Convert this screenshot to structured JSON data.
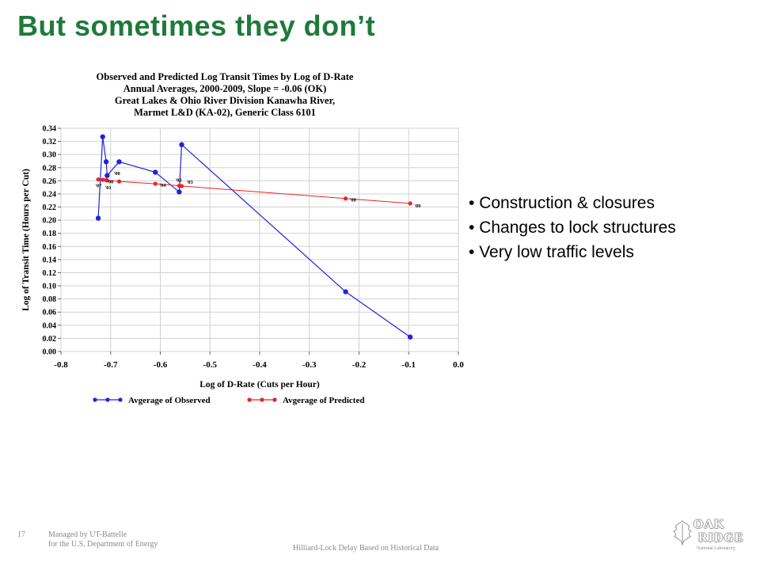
{
  "slide": {
    "title": "But sometimes they don’t",
    "bullets": [
      "Construction & closures",
      "Changes to lock structures",
      "Very low traffic levels"
    ]
  },
  "footer": {
    "page_number": "17",
    "managed_line1": "Managed by UT-Battelle",
    "managed_line2": "for the U.S. Department of Energy",
    "center_text": "Hilliard-Lock Delay Based on Historical Data"
  },
  "logo": {
    "line1": "OAK",
    "line2": "RIDGE",
    "subtitle": "National Laboratory"
  },
  "chart_data": {
    "type": "line",
    "title_lines": [
      "Observed and Predicted Log Transit Times by Log of D-Rate",
      "Annual Averages, 2000-2009, Slope = -0.06 (OK)",
      "Great Lakes & Ohio River Division Kanawha River,",
      "Marmet L&D (KA-02), Generic Class 6101"
    ],
    "xlabel": "Log of D-Rate (Cuts per Hour)",
    "ylabel": "Log of Transit Time (Hours per Cut)",
    "xlim": [
      -0.8,
      0.0
    ],
    "ylim": [
      0.0,
      0.34
    ],
    "xticks": [
      "-0.8",
      "-0.7",
      "-0.6",
      "-0.5",
      "-0.4",
      "-0.3",
      "-0.2",
      "-0.1",
      "0.0"
    ],
    "yticks": [
      "0.00",
      "0.02",
      "0.04",
      "0.06",
      "0.08",
      "0.10",
      "0.12",
      "0.14",
      "0.16",
      "0.18",
      "0.20",
      "0.22",
      "0.24",
      "0.26",
      "0.28",
      "0.30",
      "0.32",
      "0.34"
    ],
    "grid": true,
    "legend_position": "bottom",
    "series": [
      {
        "name": "Avgerage of Observed",
        "color": "#2222dd",
        "points": [
          {
            "x": -0.725,
            "y": 0.203
          },
          {
            "x": -0.716,
            "y": 0.327
          },
          {
            "x": -0.709,
            "y": 0.289
          },
          {
            "x": -0.707,
            "y": 0.268
          },
          {
            "x": -0.683,
            "y": 0.289
          },
          {
            "x": -0.61,
            "y": 0.273
          },
          {
            "x": -0.562,
            "y": 0.243
          },
          {
            "x": -0.557,
            "y": 0.315
          },
          {
            "x": -0.227,
            "y": 0.091
          },
          {
            "x": -0.097,
            "y": 0.022
          }
        ]
      },
      {
        "name": "Avgerage of Predicted",
        "color": "#ee2222",
        "points": [
          {
            "x": -0.725,
            "y": 0.262
          },
          {
            "x": -0.716,
            "y": 0.2615
          },
          {
            "x": -0.709,
            "y": 0.261
          },
          {
            "x": -0.707,
            "y": 0.2605
          },
          {
            "x": -0.683,
            "y": 0.259
          },
          {
            "x": -0.61,
            "y": 0.2555
          },
          {
            "x": -0.562,
            "y": 0.2525
          },
          {
            "x": -0.557,
            "y": 0.252
          },
          {
            "x": -0.227,
            "y": 0.233
          },
          {
            "x": -0.097,
            "y": 0.2255
          }
        ]
      }
    ],
    "point_labels": [
      {
        "text": "'07",
        "x": -0.725,
        "y": 0.262
      },
      {
        "text": "'01",
        "x": -0.707,
        "y": 0.2605
      },
      {
        "text": "'06",
        "x": -0.709,
        "y": 0.261
      },
      {
        "text": "'00",
        "x": -0.683,
        "y": 0.259
      },
      {
        "text": "'04",
        "x": -0.61,
        "y": 0.2555
      },
      {
        "text": "'02",
        "x": -0.562,
        "y": 0.2525
      },
      {
        "text": "'03",
        "x": -0.557,
        "y": 0.252
      },
      {
        "text": "'08",
        "x": -0.227,
        "y": 0.233
      },
      {
        "text": "'09",
        "x": -0.097,
        "y": 0.2255
      }
    ]
  }
}
